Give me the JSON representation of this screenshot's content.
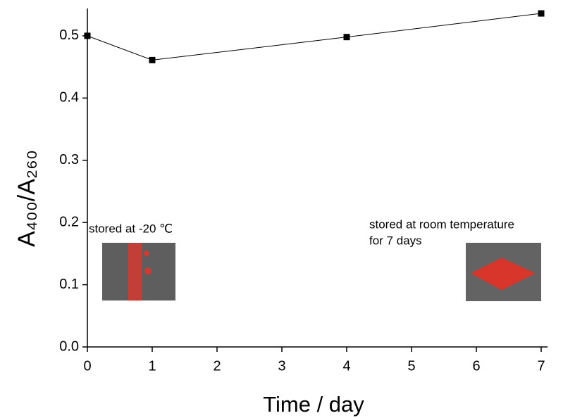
{
  "chart_data": {
    "type": "line",
    "x": [
      0,
      1,
      4,
      7
    ],
    "series": [
      {
        "values": [
          0.5,
          0.461,
          0.498,
          0.536
        ],
        "color": "#000000"
      }
    ],
    "xlim": [
      0,
      7.1
    ],
    "ylim": [
      0,
      0.544
    ],
    "xticks": [
      0,
      1,
      2,
      3,
      4,
      5,
      6,
      7
    ],
    "yticks": [
      {
        "value": 0,
        "label": "0.0"
      },
      {
        "value": 0.1,
        "label": "0.1"
      },
      {
        "value": 0.2,
        "label": "0.2"
      },
      {
        "value": 0.3,
        "label": "0.3"
      },
      {
        "value": 0.4,
        "label": "0.4"
      },
      {
        "value": 0.5,
        "label": "0.5"
      }
    ],
    "xlabel": "Time / day",
    "ylabel": "A₄₀₀/A₂₆₀",
    "annotations": [
      [
        "stored at -20 ℃"
      ],
      [
        "stored at room temperature",
        "for 7 days"
      ]
    ],
    "grid": false
  }
}
